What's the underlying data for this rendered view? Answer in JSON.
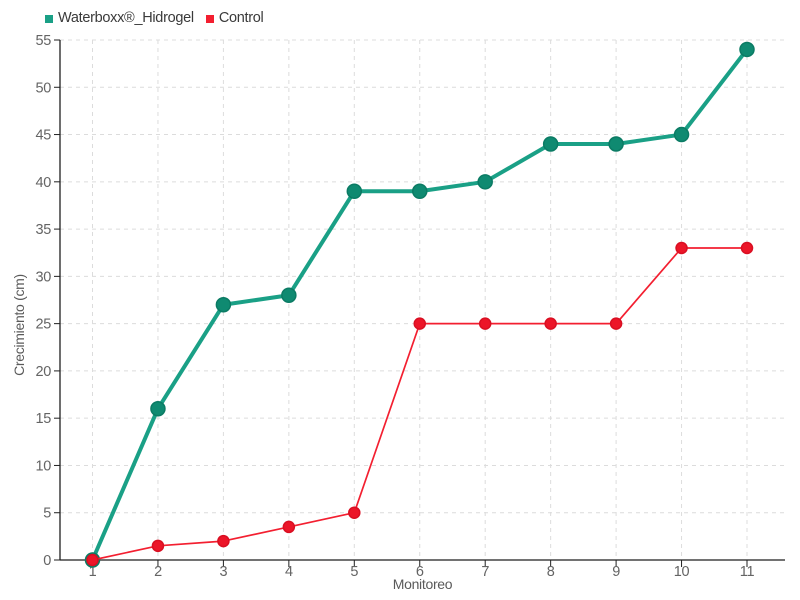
{
  "chart_data": {
    "type": "line",
    "title": "",
    "xlabel": "Monitoreo",
    "ylabel": "Crecimiento (cm)",
    "x": [
      1,
      2,
      3,
      4,
      5,
      6,
      7,
      8,
      9,
      10,
      11
    ],
    "x_ticks": [
      1,
      2,
      3,
      4,
      5,
      6,
      7,
      8,
      9,
      10,
      11
    ],
    "y_ticks": [
      0,
      5,
      10,
      15,
      20,
      25,
      30,
      35,
      40,
      45,
      50,
      55
    ],
    "xlim": [
      1,
      11
    ],
    "ylim": [
      0,
      55
    ],
    "grid": "dashed",
    "legend_position": "top-left",
    "series": [
      {
        "name": "Waterboxx®_Hidrogel",
        "values": [
          0,
          16,
          27,
          28,
          39,
          39,
          40,
          44,
          44,
          45,
          54
        ],
        "line_color": "#1aa086",
        "marker_color": "#0f8a71",
        "marker_stroke": "#0b7b64",
        "line_width": 4,
        "marker_radius": 7
      },
      {
        "name": "Control",
        "values": [
          0,
          1.5,
          2,
          3.5,
          5,
          25,
          25,
          25,
          25,
          33,
          33
        ],
        "line_color": "#f31f30",
        "marker_color": "#ec1528",
        "marker_stroke": "#d90f22",
        "line_width": 1.7,
        "marker_radius": 5.5
      }
    ],
    "colors": {
      "background": "#ffffff",
      "grid": "#dcdcdc",
      "axis": "#1f1f1f",
      "tick_label": "#646464",
      "axis_title": "#5a5a5a",
      "legend_text": "#3a3a3a"
    }
  }
}
